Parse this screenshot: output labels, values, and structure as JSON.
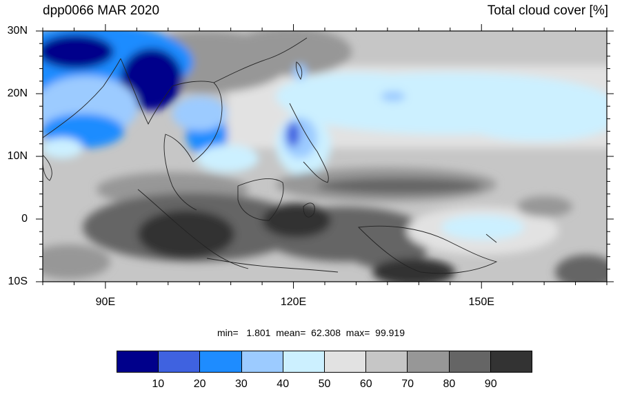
{
  "title": {
    "left": "dpp0066 MAR 2020",
    "right": "Total cloud cover [%]"
  },
  "map": {
    "lon_range": [
      80,
      170
    ],
    "lat_range": [
      -10,
      30
    ],
    "lon_labels": [
      {
        "lon": 90,
        "text": "90E"
      },
      {
        "lon": 120,
        "text": "120E"
      },
      {
        "lon": 150,
        "text": "150E"
      }
    ],
    "lat_labels": [
      {
        "lat": 30,
        "text": "30N"
      },
      {
        "lat": 20,
        "text": "20N"
      },
      {
        "lat": 10,
        "text": "10N"
      },
      {
        "lat": 0,
        "text": "0"
      },
      {
        "lat": -10,
        "text": "10S"
      }
    ]
  },
  "stats": {
    "text": "min=   1.801  mean=  62.308  max=  99.919"
  },
  "colorbar": {
    "colors": [
      "#00008b",
      "#3f62e0",
      "#1e8cff",
      "#9ccbff",
      "#ccf0ff",
      "#e2e2e2",
      "#c6c6c6",
      "#979797",
      "#656565",
      "#333333"
    ],
    "labels": [
      "10",
      "20",
      "30",
      "40",
      "50",
      "60",
      "70",
      "80",
      "90"
    ]
  }
}
